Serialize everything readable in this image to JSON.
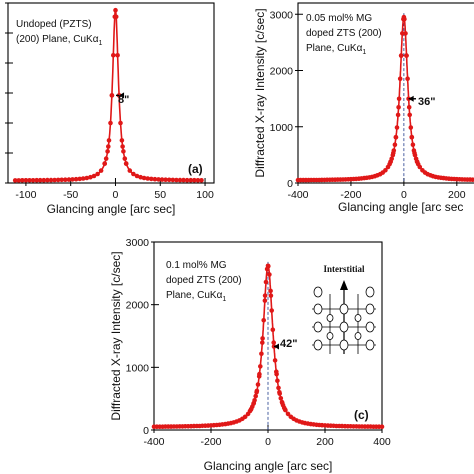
{
  "colors": {
    "series": "#e01818",
    "axis": "#000000",
    "guide": "#1f3a8a"
  },
  "chart_data": [
    {
      "type": "line",
      "panel": "(a)",
      "xlabel": "Glancing angle [arc sec]",
      "ylabel": "",
      "xlim": [
        -120,
        110
      ],
      "ylim": [
        0,
        3000
      ],
      "xticks": [
        -100,
        -50,
        0,
        50,
        100
      ],
      "xtick_labels": [
        "-100",
        "-50",
        "0",
        "50",
        "100"
      ],
      "yticks": [
        0,
        500,
        1000,
        1500,
        2000,
        2500,
        3000
      ],
      "ytick_labels": [
        "",
        "",
        "",
        "",
        "",
        "",
        ""
      ],
      "annotation_lines": [
        "Undoped (PZTS)",
        "(200) Plane,  CuKα"
      ],
      "annotation_subscript": "1",
      "fwhm_label": "8\"",
      "peak_center": 0,
      "peak_height": 2880,
      "fwhm_arcsec": 8,
      "baseline": 40,
      "x_range": [
        -112,
        98
      ],
      "point_step": 4,
      "show_center_line": false
    },
    {
      "type": "line",
      "panel": "",
      "xlabel": "Glancing angle [arc sec",
      "ylabel": "Diffracted X-ray Intensity [c/sec]",
      "xlim": [
        -400,
        280
      ],
      "ylim": [
        0,
        3200
      ],
      "xticks": [
        -400,
        -200,
        0,
        200
      ],
      "xtick_labels": [
        "-400",
        "-200",
        "0",
        "200"
      ],
      "yticks": [
        0,
        1000,
        2000,
        3000
      ],
      "ytick_labels": [
        "0",
        "1000",
        "2000",
        "3000"
      ],
      "annotation_lines": [
        "0.05 mol% MG",
        "doped ZTS (200)",
        "Plane, CuKα"
      ],
      "annotation_subscript": "1",
      "fwhm_label": "36\"",
      "peak_center": 0,
      "peak_height": 2950,
      "fwhm_arcsec": 36,
      "baseline": 45,
      "x_range": [
        -400,
        280
      ],
      "point_step": 10,
      "show_center_line": true
    },
    {
      "type": "line",
      "panel": "(c)",
      "xlabel": "Glancing angle [arc sec]",
      "ylabel": "Diffracted X-ray Intensity [c/sec]",
      "xlim": [
        -400,
        400
      ],
      "ylim": [
        0,
        3000
      ],
      "xticks": [
        -400,
        -200,
        0,
        200,
        400
      ],
      "xtick_labels": [
        "-400",
        "-200",
        "0",
        "200",
        "400"
      ],
      "yticks": [
        0,
        1000,
        2000,
        3000
      ],
      "ytick_labels": [
        "0",
        "1000",
        "2000",
        "3000"
      ],
      "annotation_lines": [
        "0.1 mol% MG",
        "doped ZTS (200)",
        "Plane, CuKα"
      ],
      "annotation_subscript": "1",
      "fwhm_label": "42\"",
      "peak_center": 0,
      "peak_height": 2620,
      "fwhm_arcsec": 42,
      "baseline": 45,
      "x_range": [
        -400,
        400
      ],
      "point_step": 10,
      "show_center_line": true,
      "inset_title": "Interstitial"
    }
  ]
}
